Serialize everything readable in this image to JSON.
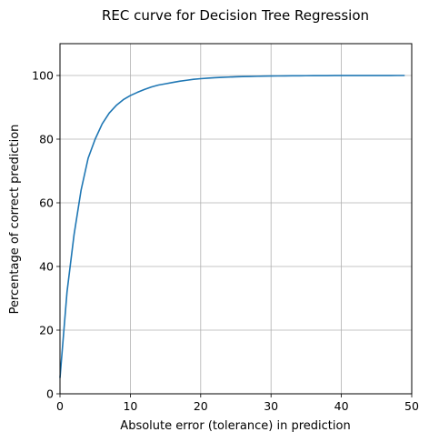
{
  "chart_data": {
    "type": "line",
    "title": "REC curve for Decision Tree Regression",
    "xlabel": "Absolute error (tolerance) in prediction",
    "ylabel": "Percentage of correct prediction",
    "xlim": [
      0,
      50
    ],
    "ylim": [
      0,
      110
    ],
    "grid": true,
    "x_ticks": [
      0,
      10,
      20,
      30,
      40,
      50
    ],
    "y_ticks": [
      0,
      20,
      40,
      60,
      80,
      100
    ],
    "series": [
      {
        "color": "#1f77b4",
        "x": [
          0,
          1,
          2,
          3,
          4,
          5,
          6,
          7,
          8,
          9,
          10,
          11,
          12,
          13,
          14,
          15,
          16,
          17,
          18,
          19,
          20,
          21,
          22,
          23,
          24,
          25,
          26,
          27,
          28,
          29,
          30,
          31,
          32,
          33,
          34,
          35,
          36,
          37,
          38,
          39,
          40,
          41,
          42,
          43,
          44,
          45,
          46,
          47,
          48,
          49
        ],
        "y": [
          5,
          32,
          50,
          64,
          74,
          80,
          84.8,
          88.2,
          90.6,
          92.4,
          93.7,
          94.7,
          95.6,
          96.4,
          97.0,
          97.4,
          97.8,
          98.2,
          98.5,
          98.8,
          99.0,
          99.15,
          99.3,
          99.4,
          99.5,
          99.6,
          99.65,
          99.7,
          99.75,
          99.8,
          99.83,
          99.86,
          99.88,
          99.9,
          99.92,
          99.93,
          99.94,
          99.95,
          99.96,
          99.97,
          99.97,
          99.98,
          99.98,
          99.98,
          99.99,
          99.99,
          99.99,
          99.99,
          100,
          100
        ]
      }
    ]
  }
}
